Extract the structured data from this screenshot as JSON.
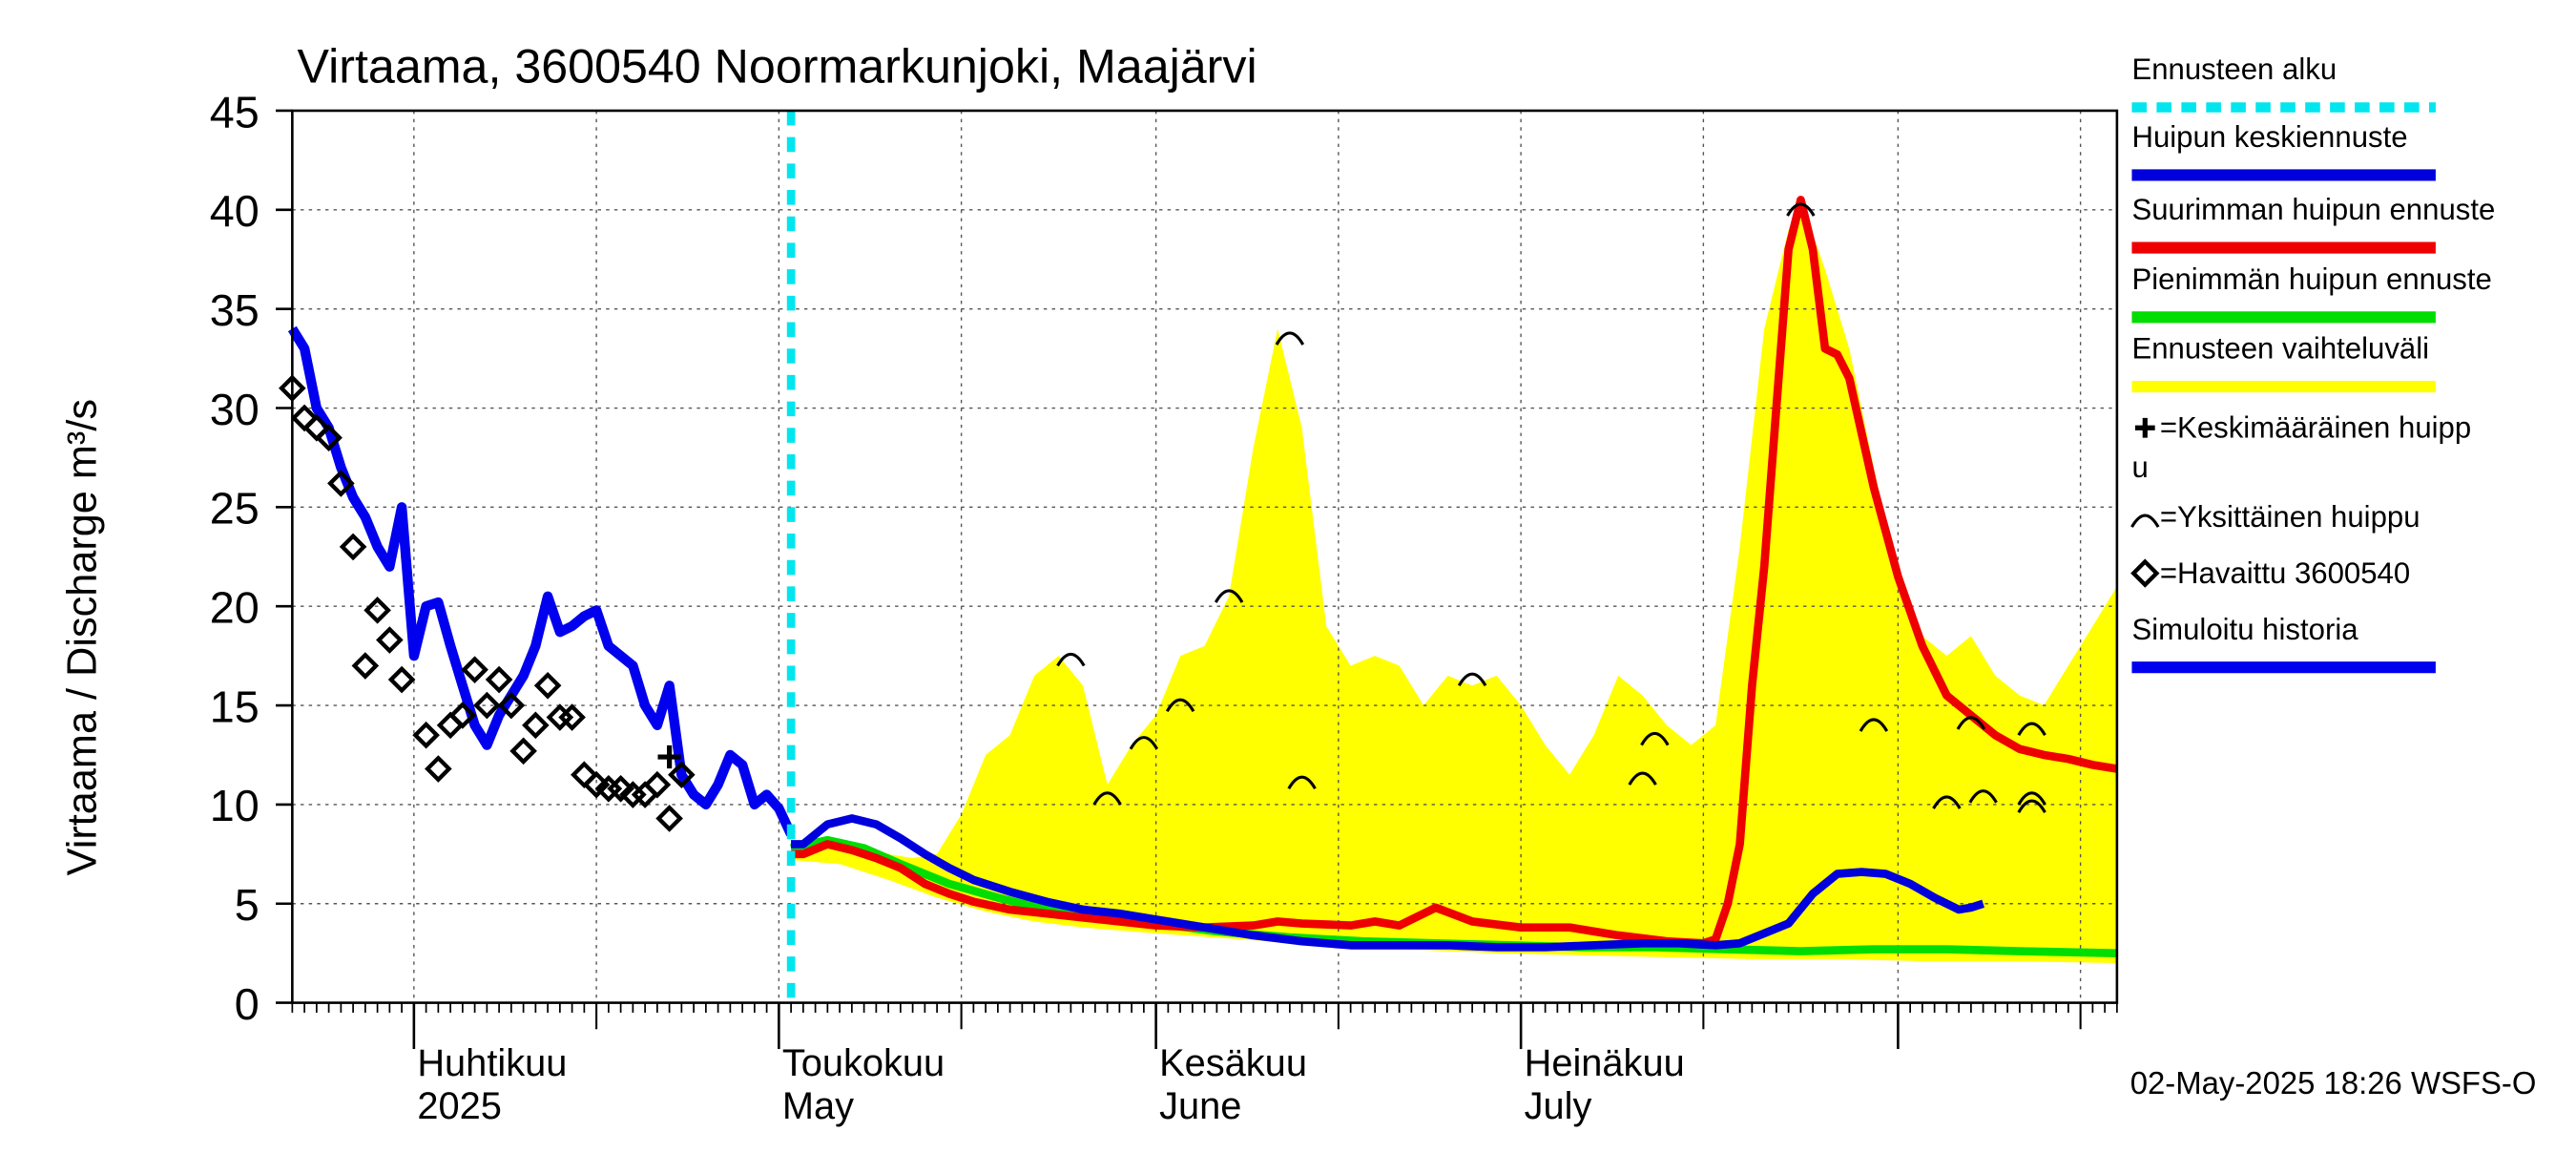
{
  "chart_data": {
    "type": "line",
    "title": "Virtaama, 3600540 Noormarkunjoki, Maajärvi",
    "ylabel": "Virtaama / Discharge    m³/s",
    "ylim": [
      0,
      45
    ],
    "yticks": [
      0,
      5,
      10,
      15,
      20,
      25,
      30,
      35,
      40,
      45
    ],
    "xlim": [
      "2025-03-22",
      "2025-08-19"
    ],
    "x_tick_labels": [
      {
        "date": "2025-04-01",
        "line1": "Huhtikuu",
        "line2": "2025"
      },
      {
        "date": "2025-05-01",
        "line1": "Toukokuu",
        "line2": "May"
      },
      {
        "date": "2025-06-01",
        "line1": "Kesäkuu",
        "line2": "June"
      },
      {
        "date": "2025-07-01",
        "line1": "Heinäkuu",
        "line2": "July"
      }
    ],
    "forecast_start": "2025-05-02",
    "timestamp": "02-May-2025 18:26 WSFS-O",
    "grid": true,
    "legend_position": "right",
    "colors": {
      "forecast_start": "#00e5ee",
      "mean_peak": "#0000dd",
      "max_peak": "#ee0000",
      "min_peak": "#00dd00",
      "range": "#ffff00",
      "simulated": "#0000ee"
    },
    "legend": [
      {
        "label": "Ennusteen alku",
        "kind": "dash",
        "color": "#00e5ee"
      },
      {
        "label": "Huipun keskiennuste",
        "kind": "line",
        "color": "#0000dd"
      },
      {
        "label": "Suurimman huipun ennuste",
        "kind": "line",
        "color": "#ee0000"
      },
      {
        "label": "Pienimmän huipun ennuste",
        "kind": "line",
        "color": "#00dd00"
      },
      {
        "label": "Ennusteen vaihteluväli",
        "kind": "line",
        "color": "#ffff00"
      },
      {
        "label": "=Keskimääräinen huipp",
        "label2": "u",
        "kind": "plus"
      },
      {
        "label": "=Yksittäinen huippu",
        "kind": "arc"
      },
      {
        "label": "=Havaittu 3600540",
        "kind": "diamond"
      },
      {
        "label": "Simuloitu historia",
        "kind": "line",
        "color": "#0000ee"
      }
    ],
    "series": [
      {
        "name": "Simuloitu historia",
        "points": [
          [
            "2025-03-22",
            34.0
          ],
          [
            "2025-03-23",
            33.0
          ],
          [
            "2025-03-24",
            30.0
          ],
          [
            "2025-03-25",
            29.0
          ],
          [
            "2025-03-26",
            27.0
          ],
          [
            "2025-03-27",
            25.5
          ],
          [
            "2025-03-28",
            24.5
          ],
          [
            "2025-03-29",
            23.0
          ],
          [
            "2025-03-30",
            22.0
          ],
          [
            "2025-03-31",
            25.0
          ],
          [
            "2025-04-01",
            17.5
          ],
          [
            "2025-04-02",
            20.0
          ],
          [
            "2025-04-03",
            20.2
          ],
          [
            "2025-04-04",
            18.0
          ],
          [
            "2025-04-05",
            16.0
          ],
          [
            "2025-04-06",
            14.0
          ],
          [
            "2025-04-07",
            13.0
          ],
          [
            "2025-04-08",
            14.5
          ],
          [
            "2025-04-09",
            15.5
          ],
          [
            "2025-04-10",
            16.5
          ],
          [
            "2025-04-11",
            18.0
          ],
          [
            "2025-04-12",
            20.5
          ],
          [
            "2025-04-13",
            18.7
          ],
          [
            "2025-04-14",
            19.0
          ],
          [
            "2025-04-15",
            19.5
          ],
          [
            "2025-04-16",
            19.8
          ],
          [
            "2025-04-17",
            18.0
          ],
          [
            "2025-04-18",
            17.5
          ],
          [
            "2025-04-19",
            17.0
          ],
          [
            "2025-04-20",
            15.0
          ],
          [
            "2025-04-21",
            14.0
          ],
          [
            "2025-04-22",
            16.0
          ],
          [
            "2025-04-23",
            11.5
          ],
          [
            "2025-04-24",
            10.5
          ],
          [
            "2025-04-25",
            10.0
          ],
          [
            "2025-04-26",
            11.0
          ],
          [
            "2025-04-27",
            12.5
          ],
          [
            "2025-04-28",
            12.0
          ],
          [
            "2025-04-29",
            10.0
          ],
          [
            "2025-04-30",
            10.5
          ],
          [
            "2025-05-01",
            9.8
          ],
          [
            "2025-05-02",
            8.5
          ]
        ]
      },
      {
        "name": "Huipun keskiennuste",
        "points": [
          [
            "2025-05-02",
            8.0
          ],
          [
            "2025-05-03",
            8.0
          ],
          [
            "2025-05-05",
            9.0
          ],
          [
            "2025-05-07",
            9.3
          ],
          [
            "2025-05-09",
            9.0
          ],
          [
            "2025-05-11",
            8.3
          ],
          [
            "2025-05-13",
            7.5
          ],
          [
            "2025-05-15",
            6.8
          ],
          [
            "2025-05-17",
            6.2
          ],
          [
            "2025-05-20",
            5.6
          ],
          [
            "2025-05-23",
            5.1
          ],
          [
            "2025-05-26",
            4.7
          ],
          [
            "2025-05-29",
            4.5
          ],
          [
            "2025-06-01",
            4.2
          ],
          [
            "2025-06-05",
            3.8
          ],
          [
            "2025-06-09",
            3.4
          ],
          [
            "2025-06-13",
            3.1
          ],
          [
            "2025-06-17",
            2.9
          ],
          [
            "2025-06-21",
            2.9
          ],
          [
            "2025-06-25",
            2.9
          ],
          [
            "2025-06-29",
            2.8
          ],
          [
            "2025-07-03",
            2.8
          ],
          [
            "2025-07-07",
            2.9
          ],
          [
            "2025-07-11",
            3.0
          ],
          [
            "2025-07-14",
            3.0
          ],
          [
            "2025-07-17",
            2.9
          ],
          [
            "2025-07-19",
            3.0
          ],
          [
            "2025-07-21",
            3.5
          ],
          [
            "2025-07-23",
            4.0
          ],
          [
            "2025-07-25",
            5.5
          ],
          [
            "2025-07-27",
            6.5
          ],
          [
            "2025-07-29",
            6.6
          ],
          [
            "2025-07-31",
            6.5
          ],
          [
            "2025-08-02",
            6.0
          ],
          [
            "2025-08-04",
            5.3
          ],
          [
            "2025-08-06",
            4.7
          ],
          [
            "2025-08-07",
            4.8
          ],
          [
            "2025-08-08",
            5.0
          ]
        ]
      },
      {
        "name": "Suurimman huipun ennuste",
        "points": [
          [
            "2025-05-02",
            7.5
          ],
          [
            "2025-05-03",
            7.5
          ],
          [
            "2025-05-05",
            8.0
          ],
          [
            "2025-05-07",
            7.7
          ],
          [
            "2025-05-09",
            7.3
          ],
          [
            "2025-05-11",
            6.8
          ],
          [
            "2025-05-13",
            6.0
          ],
          [
            "2025-05-15",
            5.5
          ],
          [
            "2025-05-17",
            5.1
          ],
          [
            "2025-05-20",
            4.7
          ],
          [
            "2025-05-23",
            4.5
          ],
          [
            "2025-05-26",
            4.3
          ],
          [
            "2025-05-29",
            4.1
          ],
          [
            "2025-06-01",
            3.9
          ],
          [
            "2025-06-05",
            3.8
          ],
          [
            "2025-06-09",
            3.9
          ],
          [
            "2025-06-11",
            4.1
          ],
          [
            "2025-06-13",
            4.0
          ],
          [
            "2025-06-17",
            3.9
          ],
          [
            "2025-06-19",
            4.1
          ],
          [
            "2025-06-21",
            3.9
          ],
          [
            "2025-06-24",
            4.8
          ],
          [
            "2025-06-27",
            4.1
          ],
          [
            "2025-07-01",
            3.8
          ],
          [
            "2025-07-05",
            3.8
          ],
          [
            "2025-07-09",
            3.4
          ],
          [
            "2025-07-13",
            3.1
          ],
          [
            "2025-07-16",
            3.0
          ],
          [
            "2025-07-17",
            3.2
          ],
          [
            "2025-07-18",
            5.0
          ],
          [
            "2025-07-19",
            8.0
          ],
          [
            "2025-07-20",
            16.0
          ],
          [
            "2025-07-21",
            22.0
          ],
          [
            "2025-07-22",
            30.0
          ],
          [
            "2025-07-23",
            38.0
          ],
          [
            "2025-07-24",
            40.5
          ],
          [
            "2025-07-25",
            38.0
          ],
          [
            "2025-07-26",
            33.0
          ],
          [
            "2025-07-27",
            32.7
          ],
          [
            "2025-07-28",
            31.5
          ],
          [
            "2025-07-30",
            26.0
          ],
          [
            "2025-08-01",
            21.5
          ],
          [
            "2025-08-03",
            18.0
          ],
          [
            "2025-08-05",
            15.5
          ],
          [
            "2025-08-07",
            14.5
          ],
          [
            "2025-08-09",
            13.5
          ],
          [
            "2025-08-11",
            12.8
          ],
          [
            "2025-08-13",
            12.5
          ],
          [
            "2025-08-15",
            12.3
          ],
          [
            "2025-08-17",
            12.0
          ],
          [
            "2025-08-19",
            11.8
          ]
        ]
      },
      {
        "name": "Pienimmän huipun ennuste",
        "points": [
          [
            "2025-05-02",
            7.8
          ],
          [
            "2025-05-05",
            8.2
          ],
          [
            "2025-05-08",
            7.8
          ],
          [
            "2025-05-11",
            7.0
          ],
          [
            "2025-05-15",
            6.0
          ],
          [
            "2025-05-19",
            5.3
          ],
          [
            "2025-05-23",
            4.7
          ],
          [
            "2025-05-27",
            4.3
          ],
          [
            "2025-06-01",
            4.0
          ],
          [
            "2025-06-06",
            3.6
          ],
          [
            "2025-06-12",
            3.3
          ],
          [
            "2025-06-18",
            3.1
          ],
          [
            "2025-06-24",
            3.0
          ],
          [
            "2025-06-30",
            2.9
          ],
          [
            "2025-07-06",
            2.8
          ],
          [
            "2025-07-12",
            2.8
          ],
          [
            "2025-07-18",
            2.7
          ],
          [
            "2025-07-24",
            2.6
          ],
          [
            "2025-07-30",
            2.7
          ],
          [
            "2025-08-05",
            2.7
          ],
          [
            "2025-08-11",
            2.6
          ],
          [
            "2025-08-19",
            2.5
          ]
        ]
      }
    ],
    "range_band": {
      "name": "Ennusteen vaihteluväli",
      "upper": [
        [
          "2025-05-02",
          7.5
        ],
        [
          "2025-05-05",
          8.2
        ],
        [
          "2025-05-08",
          7.8
        ],
        [
          "2025-05-10",
          7.5
        ],
        [
          "2025-05-12",
          7.3
        ],
        [
          "2025-05-14",
          7.5
        ],
        [
          "2025-05-16",
          9.5
        ],
        [
          "2025-05-18",
          12.5
        ],
        [
          "2025-05-20",
          13.5
        ],
        [
          "2025-05-22",
          16.5
        ],
        [
          "2025-05-24",
          17.5
        ],
        [
          "2025-05-26",
          16.0
        ],
        [
          "2025-05-28",
          11.0
        ],
        [
          "2025-05-30",
          13.0
        ],
        [
          "2025-06-01",
          14.5
        ],
        [
          "2025-06-03",
          17.5
        ],
        [
          "2025-06-05",
          18.0
        ],
        [
          "2025-06-07",
          20.5
        ],
        [
          "2025-06-09",
          28.0
        ],
        [
          "2025-06-11",
          34.0
        ],
        [
          "2025-06-13",
          29.0
        ],
        [
          "2025-06-15",
          19.0
        ],
        [
          "2025-06-17",
          17.0
        ],
        [
          "2025-06-19",
          17.5
        ],
        [
          "2025-06-21",
          17.0
        ],
        [
          "2025-06-23",
          15.0
        ],
        [
          "2025-06-25",
          16.5
        ],
        [
          "2025-06-27",
          16.0
        ],
        [
          "2025-06-29",
          16.5
        ],
        [
          "2025-07-01",
          15.0
        ],
        [
          "2025-07-03",
          13.0
        ],
        [
          "2025-07-05",
          11.5
        ],
        [
          "2025-07-07",
          13.5
        ],
        [
          "2025-07-09",
          16.5
        ],
        [
          "2025-07-11",
          15.5
        ],
        [
          "2025-07-13",
          14.0
        ],
        [
          "2025-07-15",
          13.0
        ],
        [
          "2025-07-17",
          14.0
        ],
        [
          "2025-07-19",
          23.0
        ],
        [
          "2025-07-21",
          34.0
        ],
        [
          "2025-07-23",
          39.0
        ],
        [
          "2025-07-24",
          40.5
        ],
        [
          "2025-07-26",
          37.0
        ],
        [
          "2025-07-28",
          33.0
        ],
        [
          "2025-07-30",
          27.0
        ],
        [
          "2025-08-01",
          21.5
        ],
        [
          "2025-08-03",
          18.5
        ],
        [
          "2025-08-05",
          17.5
        ],
        [
          "2025-08-07",
          18.5
        ],
        [
          "2025-08-09",
          16.5
        ],
        [
          "2025-08-11",
          15.5
        ],
        [
          "2025-08-13",
          15.0
        ],
        [
          "2025-08-15",
          17.0
        ],
        [
          "2025-08-17",
          19.0
        ],
        [
          "2025-08-19",
          21.0
        ]
      ],
      "lower": [
        [
          "2025-05-02",
          7.2
        ],
        [
          "2025-05-06",
          7.0
        ],
        [
          "2025-05-10",
          6.2
        ],
        [
          "2025-05-14",
          5.3
        ],
        [
          "2025-05-18",
          4.6
        ],
        [
          "2025-05-22",
          4.1
        ],
        [
          "2025-05-26",
          3.8
        ],
        [
          "2025-06-01",
          3.5
        ],
        [
          "2025-06-08",
          3.2
        ],
        [
          "2025-06-15",
          2.9
        ],
        [
          "2025-06-22",
          2.7
        ],
        [
          "2025-06-29",
          2.5
        ],
        [
          "2025-07-06",
          2.4
        ],
        [
          "2025-07-13",
          2.3
        ],
        [
          "2025-07-20",
          2.2
        ],
        [
          "2025-07-27",
          2.2
        ],
        [
          "2025-08-03",
          2.1
        ],
        [
          "2025-08-10",
          2.1
        ],
        [
          "2025-08-19",
          2.0
        ]
      ]
    },
    "observed": [
      [
        "2025-03-22",
        31.0
      ],
      [
        "2025-03-23",
        29.5
      ],
      [
        "2025-03-24",
        29.0
      ],
      [
        "2025-03-25",
        28.5
      ],
      [
        "2025-03-26",
        26.2
      ],
      [
        "2025-03-27",
        23.0
      ],
      [
        "2025-03-28",
        17.0
      ],
      [
        "2025-03-29",
        19.8
      ],
      [
        "2025-03-30",
        18.3
      ],
      [
        "2025-03-31",
        16.3
      ],
      [
        "2025-04-02",
        13.5
      ],
      [
        "2025-04-03",
        11.8
      ],
      [
        "2025-04-04",
        14.0
      ],
      [
        "2025-04-05",
        14.5
      ],
      [
        "2025-04-06",
        16.8
      ],
      [
        "2025-04-07",
        15.0
      ],
      [
        "2025-04-08",
        16.3
      ],
      [
        "2025-04-09",
        15.0
      ],
      [
        "2025-04-10",
        12.7
      ],
      [
        "2025-04-11",
        14.0
      ],
      [
        "2025-04-12",
        16.0
      ],
      [
        "2025-04-13",
        14.4
      ],
      [
        "2025-04-14",
        14.4
      ],
      [
        "2025-04-15",
        11.5
      ],
      [
        "2025-04-16",
        11.0
      ],
      [
        "2025-04-17",
        10.8
      ],
      [
        "2025-04-18",
        10.8
      ],
      [
        "2025-04-19",
        10.5
      ],
      [
        "2025-04-20",
        10.5
      ],
      [
        "2025-04-21",
        11.0
      ],
      [
        "2025-04-22",
        9.3
      ],
      [
        "2025-04-23",
        11.5
      ]
    ],
    "single_peaks": [
      [
        "2025-05-25",
        17.5
      ],
      [
        "2025-05-28",
        10.5
      ],
      [
        "2025-05-31",
        13.3
      ],
      [
        "2025-06-03",
        15.2
      ],
      [
        "2025-06-07",
        20.7
      ],
      [
        "2025-06-12",
        33.7
      ],
      [
        "2025-06-13",
        11.3
      ],
      [
        "2025-06-27",
        16.5
      ],
      [
        "2025-07-11",
        11.5
      ],
      [
        "2025-07-12",
        13.5
      ],
      [
        "2025-07-24",
        40.2
      ],
      [
        "2025-07-30",
        14.2
      ],
      [
        "2025-08-05",
        10.3
      ],
      [
        "2025-08-07",
        14.3
      ],
      [
        "2025-08-08",
        10.6
      ],
      [
        "2025-08-12",
        14.0
      ],
      [
        "2025-08-12",
        10.5
      ],
      [
        "2025-08-12",
        10.1
      ]
    ],
    "mean_peak_marker": [
      "2025-04-22",
      12.4
    ]
  }
}
